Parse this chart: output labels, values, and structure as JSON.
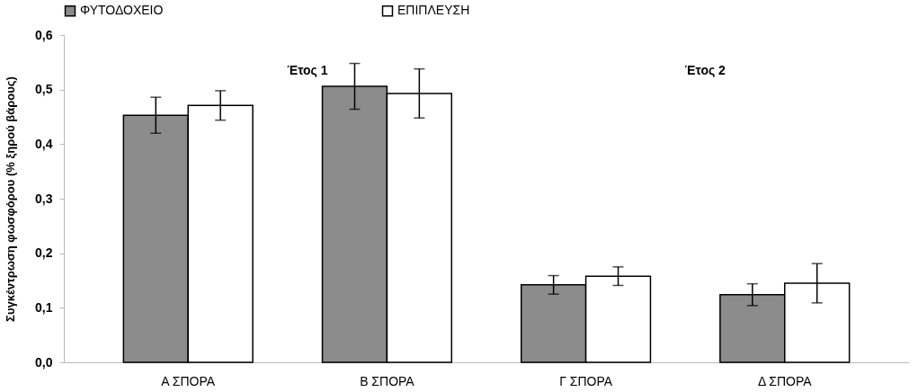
{
  "chart_data": {
    "type": "bar",
    "ylabel": "Συγκέντρωση φωσφόρου (% ξηρού βάρους)",
    "categories": [
      "Α ΣΠΟΡΑ",
      "Β ΣΠΟΡΑ",
      "Γ ΣΠΟΡΑ",
      "Δ ΣΠΟΡΑ"
    ],
    "series": [
      {
        "name": "ΦΥΤΟΔΟΧΕΙΟ",
        "color": "#8c8c8c",
        "values": [
          0.453,
          0.506,
          0.142,
          0.124
        ],
        "errors": [
          0.033,
          0.042,
          0.017,
          0.02
        ]
      },
      {
        "name": "ΕΠΙΠΛΕΥΣΗ",
        "color": "#ffffff",
        "values": [
          0.471,
          0.493,
          0.158,
          0.145
        ],
        "errors": [
          0.027,
          0.045,
          0.017,
          0.036
        ]
      }
    ],
    "ylim": [
      0,
      0.6
    ],
    "yticks": [
      {
        "value": 0,
        "label": "0,0"
      },
      {
        "value": 0.1,
        "label": "0,1"
      },
      {
        "value": 0.2,
        "label": "0,2"
      },
      {
        "value": 0.3,
        "label": "0,3"
      },
      {
        "value": 0.4,
        "label": "0,4"
      },
      {
        "value": 0.5,
        "label": "0,5"
      },
      {
        "value": 0.6,
        "label": "0,6"
      }
    ],
    "annotations": [
      "Έτος 1",
      "Έτος 2"
    ],
    "grid": false,
    "legend": "top"
  }
}
